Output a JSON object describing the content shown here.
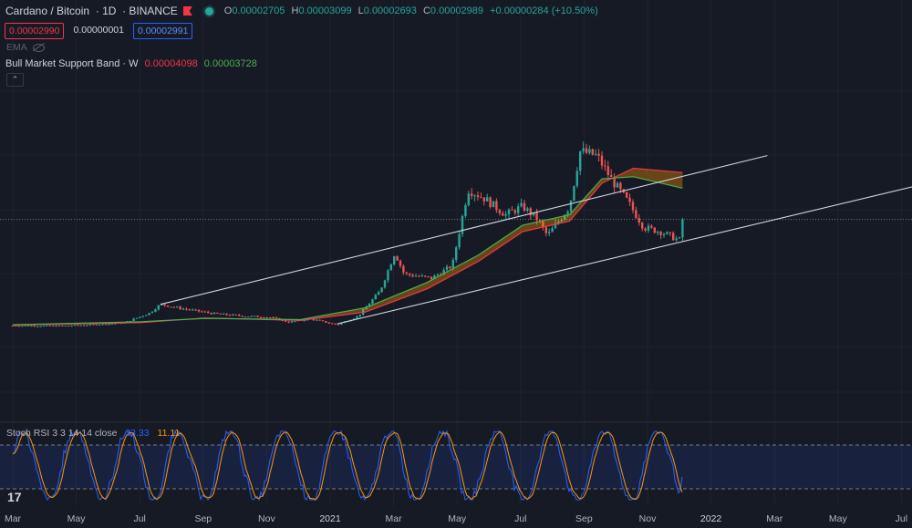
{
  "header": {
    "symbol": "Cardano / Bitcoin",
    "interval": "1D",
    "exchange": "BINANCE",
    "ohlc": {
      "o_label": "O",
      "o": "0.00002705",
      "h_label": "H",
      "h": "0.00003099",
      "l_label": "L",
      "l": "0.00002693",
      "c_label": "C",
      "c": "0.00002989",
      "chg": "+0.00000284 (+10.50%)"
    }
  },
  "price_boxes": {
    "bid": "0.00002990",
    "spread": "0.00000001",
    "ask": "0.00002991"
  },
  "ema_label": "EMA",
  "bmsb": {
    "label": "Bull Market Support Band · W",
    "val1": "0.00004098",
    "val2": "0.00003728"
  },
  "collapse_glyph": "⌃",
  "stoch": {
    "label": "Stoch RSI 3 3 14 14 close",
    "k": "33.33",
    "d": "11.11"
  },
  "tv_logo": "17",
  "colors": {
    "bg": "#161a25",
    "up": "#26a69a",
    "down": "#ef5350",
    "sma": "#f23645",
    "ema": "#4caf50",
    "k": "#2962ff",
    "d": "#ff9800",
    "trend": "#d1d4dc"
  },
  "chart_data": {
    "type": "candlestick",
    "x_ticks": [
      {
        "label": "Mar",
        "year": false
      },
      {
        "label": "May",
        "year": false
      },
      {
        "label": "Jul",
        "year": false
      },
      {
        "label": "Sep",
        "year": false
      },
      {
        "label": "Nov",
        "year": false
      },
      {
        "label": "2021",
        "year": true
      },
      {
        "label": "Mar",
        "year": false
      },
      {
        "label": "May",
        "year": false
      },
      {
        "label": "Jul",
        "year": false
      },
      {
        "label": "Sep",
        "year": false
      },
      {
        "label": "Nov",
        "year": false
      },
      {
        "label": "2022",
        "year": true
      },
      {
        "label": "Mar",
        "year": false
      },
      {
        "label": "May",
        "year": false
      },
      {
        "label": "Jul",
        "year": false
      }
    ],
    "last_price": 2.989e-05,
    "price_path": [
      [
        "2020-03-01",
        4.8e-06
      ],
      [
        "2020-04-15",
        4.7e-06
      ],
      [
        "2020-05-15",
        5e-06
      ],
      [
        "2020-06-15",
        5.4e-06
      ],
      [
        "2020-07-10",
        7.8e-06
      ],
      [
        "2020-07-20",
        9.8e-06
      ],
      [
        "2020-08-10",
        8.8e-06
      ],
      [
        "2020-09-10",
        7.6e-06
      ],
      [
        "2020-10-10",
        7e-06
      ],
      [
        "2020-11-01",
        6.8e-06
      ],
      [
        "2020-11-20",
        5.6e-06
      ],
      [
        "2020-12-10",
        6.4e-06
      ],
      [
        "2021-01-05",
        5e-06
      ],
      [
        "2021-01-25",
        7e-06
      ],
      [
        "2021-02-15",
        1.3e-05
      ],
      [
        "2021-03-01",
        2.2e-05
      ],
      [
        "2021-03-10",
        1.7e-05
      ],
      [
        "2021-04-05",
        1.6e-05
      ],
      [
        "2021-04-25",
        1.9e-05
      ],
      [
        "2021-05-10",
        3.7e-05
      ],
      [
        "2021-05-25",
        3.5e-05
      ],
      [
        "2021-06-15",
        3.1e-05
      ],
      [
        "2021-07-01",
        3.3e-05
      ],
      [
        "2021-07-15",
        3e-05
      ],
      [
        "2021-07-25",
        2.6e-05
      ],
      [
        "2021-08-15",
        3.3e-05
      ],
      [
        "2021-08-25",
        4.6e-05
      ],
      [
        "2021-09-10",
        4.5e-05
      ],
      [
        "2021-09-25",
        3.9e-05
      ],
      [
        "2021-10-10",
        3.4e-05
      ],
      [
        "2021-10-25",
        2.8e-05
      ],
      [
        "2021-11-10",
        2.7e-05
      ],
      [
        "2021-11-28",
        2.5e-05
      ],
      [
        "2021-12-01",
        2.989e-05
      ]
    ],
    "bull_market_support_band": {
      "sma_20w": [
        [
          "2020-03-01",
          4.9e-06
        ],
        [
          "2020-07-01",
          5.5e-06
        ],
        [
          "2020-09-01",
          6.6e-06
        ],
        [
          "2020-12-01",
          6e-06
        ],
        [
          "2021-02-01",
          8e-06
        ],
        [
          "2021-04-01",
          1.35e-05
        ],
        [
          "2021-05-20",
          2e-05
        ],
        [
          "2021-07-01",
          2.7e-05
        ],
        [
          "2021-08-15",
          2.95e-05
        ],
        [
          "2021-09-15",
          3.85e-05
        ],
        [
          "2021-10-15",
          4.2e-05
        ],
        [
          "2021-12-01",
          4.1e-05
        ]
      ],
      "ema_21w": [
        [
          "2020-03-01",
          5e-06
        ],
        [
          "2020-07-01",
          5.7e-06
        ],
        [
          "2020-09-01",
          6.5e-06
        ],
        [
          "2020-12-01",
          6.2e-06
        ],
        [
          "2021-02-01",
          9e-06
        ],
        [
          "2021-04-01",
          1.5e-05
        ],
        [
          "2021-05-20",
          2.15e-05
        ],
        [
          "2021-07-01",
          2.85e-05
        ],
        [
          "2021-08-15",
          3.1e-05
        ],
        [
          "2021-09-15",
          3.95e-05
        ],
        [
          "2021-10-15",
          4e-05
        ],
        [
          "2021-12-01",
          3.73e-05
        ]
      ]
    },
    "trend_lines": [
      {
        "from": [
          "2020-07-20",
          9.8e-06
        ],
        "to": [
          "2022-02-20",
          4.5e-05
        ]
      },
      {
        "from": [
          "2021-01-05",
          5.2e-06
        ],
        "to": [
          "2022-08-01",
          3.9e-05
        ]
      }
    ],
    "stoch_rsi": {
      "k_last": 33.33,
      "d_last": 11.11,
      "upper": 80,
      "lower": 20
    }
  }
}
